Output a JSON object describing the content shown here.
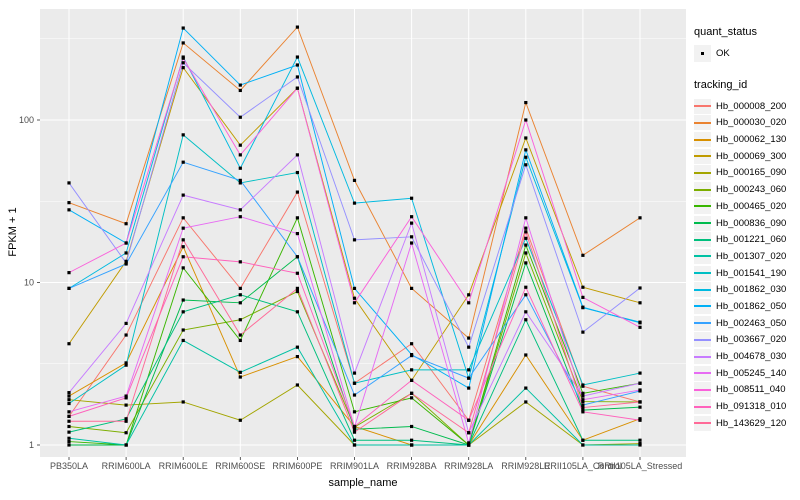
{
  "figure": {
    "background": "#FFFFFF"
  },
  "panel": {
    "fill": "#EBEBEB",
    "grid_color": "#FFFFFF",
    "tick_color": "#333333",
    "tick_label_color": "#4D4D4D"
  },
  "legend": {
    "quant_status": {
      "title": "quant_status",
      "items": [
        {
          "label": "OK",
          "marker": "black-point"
        }
      ]
    },
    "tracking_id": {
      "title": "tracking_id"
    }
  },
  "chart_data": {
    "type": "line",
    "title": "",
    "xlabel": "sample_name",
    "ylabel": "FPKM + 1",
    "y_scale": "log10",
    "y_ticks": [
      1,
      10,
      100
    ],
    "y_minor_ticks": [
      3.1623,
      31.623,
      316.23
    ],
    "ylim": [
      0.93,
      490
    ],
    "grid": true,
    "legend_position": "right",
    "point_color": "#000000",
    "point_shape": "filled-square-dot",
    "categories": [
      "PB350LA",
      "RRIM600LA",
      "RRIM600LE",
      "RRIM600SE",
      "RRIM600PE",
      "RRIM901LA",
      "RRIM928BA",
      "RRIM928LA",
      "RRIM928LE",
      "RRII105LA_Control",
      "RRII105LA_Stressed"
    ],
    "series": [
      {
        "name": "Hb_000008_200",
        "color": "#F8766D",
        "values": [
          1.5,
          4.75,
          25,
          9.2,
          36,
          2.4,
          4.2,
          1.42,
          21.6,
          2.3,
          1.84
        ]
      },
      {
        "name": "Hb_000030_020",
        "color": "#EA8331",
        "values": [
          31,
          23,
          298,
          152,
          373,
          42.5,
          9.2,
          4.55,
          128,
          14.7,
          25
        ]
      },
      {
        "name": "Hb_000062_130",
        "color": "#D89000",
        "values": [
          2.0,
          3.2,
          16.6,
          2.62,
          3.5,
          1.3,
          1.0,
          1.0,
          3.58,
          1.07,
          1.45
        ]
      },
      {
        "name": "Hb_000069_300",
        "color": "#C09B00",
        "values": [
          4.2,
          13.5,
          210,
          70,
          157,
          8.0,
          2.5,
          8.4,
          77.5,
          9.35,
          7.5
        ]
      },
      {
        "name": "Hb_000165_090",
        "color": "#A3A500",
        "values": [
          1.9,
          1.76,
          1.84,
          1.42,
          2.34,
          1.0,
          1.0,
          1.0,
          1.84,
          1.0,
          1.02
        ]
      },
      {
        "name": "Hb_000243_060",
        "color": "#7CAE00",
        "values": [
          1.3,
          1.19,
          5.1,
          5.9,
          8.8,
          1.29,
          2.08,
          1.0,
          15.2,
          1.85,
          1.84
        ]
      },
      {
        "name": "Hb_000465_020",
        "color": "#39B600",
        "values": [
          1.05,
          1.0,
          12.3,
          4.4,
          25,
          1.6,
          1.95,
          1.0,
          17,
          2.08,
          2.4
        ]
      },
      {
        "name": "Hb_000836_090",
        "color": "#00BB4E",
        "values": [
          1.0,
          1.0,
          7.8,
          7.5,
          14.4,
          1.25,
          1.3,
          1.0,
          13.2,
          1.64,
          1.71
        ]
      },
      {
        "name": "Hb_001221_060",
        "color": "#00BF7D",
        "values": [
          1.2,
          1.45,
          6.6,
          8.4,
          6.6,
          1.07,
          1.07,
          1.0,
          5.9,
          1.07,
          1.07
        ]
      },
      {
        "name": "Hb_001307_020",
        "color": "#00C1A3",
        "values": [
          1.1,
          1.0,
          4.4,
          2.8,
          4.0,
          1.0,
          1.0,
          1.0,
          2.24,
          1.0,
          1.0
        ]
      },
      {
        "name": "Hb_001541_190",
        "color": "#00BFC4",
        "values": [
          1.8,
          3.1,
          81,
          41,
          47.5,
          2.4,
          2.9,
          2.9,
          18.7,
          2.34,
          2.77
        ]
      },
      {
        "name": "Hb_001862_030",
        "color": "#00BAE0",
        "values": [
          9.2,
          15.2,
          244,
          50.5,
          244,
          30.8,
          33,
          2.58,
          59,
          7.0,
          5.7
        ]
      },
      {
        "name": "Hb_001862_050",
        "color": "#00B0F6",
        "values": [
          28,
          17.5,
          368,
          164,
          218,
          9.2,
          3.6,
          2.24,
          65.5,
          7.05,
          5.65
        ]
      },
      {
        "name": "Hb_002463_050",
        "color": "#35A2FF",
        "values": [
          9.2,
          13.0,
          55,
          42.5,
          14.4,
          2.03,
          3.55,
          2.58,
          8.4,
          1.76,
          2.15
        ]
      },
      {
        "name": "Hb_003667_020",
        "color": "#9590FF",
        "values": [
          41,
          13.2,
          225,
          104,
          184,
          18.3,
          19.1,
          4.0,
          53,
          4.95,
          9.25
        ]
      },
      {
        "name": "Hb_004678_030",
        "color": "#C77CFF",
        "values": [
          2.1,
          5.6,
          34.5,
          28,
          61,
          2.77,
          23.2,
          1.19,
          6.6,
          2.0,
          2.4
        ]
      },
      {
        "name": "Hb_005245_140",
        "color": "#E76BF3",
        "values": [
          1.6,
          2.0,
          21.6,
          25.4,
          20,
          1.29,
          17.5,
          1.03,
          25,
          1.9,
          2.18
        ]
      },
      {
        "name": "Hb_008511_040",
        "color": "#FA62DB",
        "values": [
          11.5,
          17.5,
          240,
          61,
          157,
          7.5,
          25.4,
          7.5,
          100,
          8.1,
          5.3
        ]
      },
      {
        "name": "Hb_091318_010",
        "color": "#FF62BC",
        "values": [
          1.5,
          1.95,
          14.4,
          13.4,
          11.4,
          1.3,
          2.5,
          1.42,
          9.35,
          1.6,
          1.42
        ]
      },
      {
        "name": "Hb_143629_120",
        "color": "#FF6A98",
        "values": [
          1.4,
          1.4,
          18.3,
          4.75,
          9.2,
          1.2,
          2.08,
          1.19,
          20.5,
          1.7,
          1.84
        ]
      }
    ]
  }
}
